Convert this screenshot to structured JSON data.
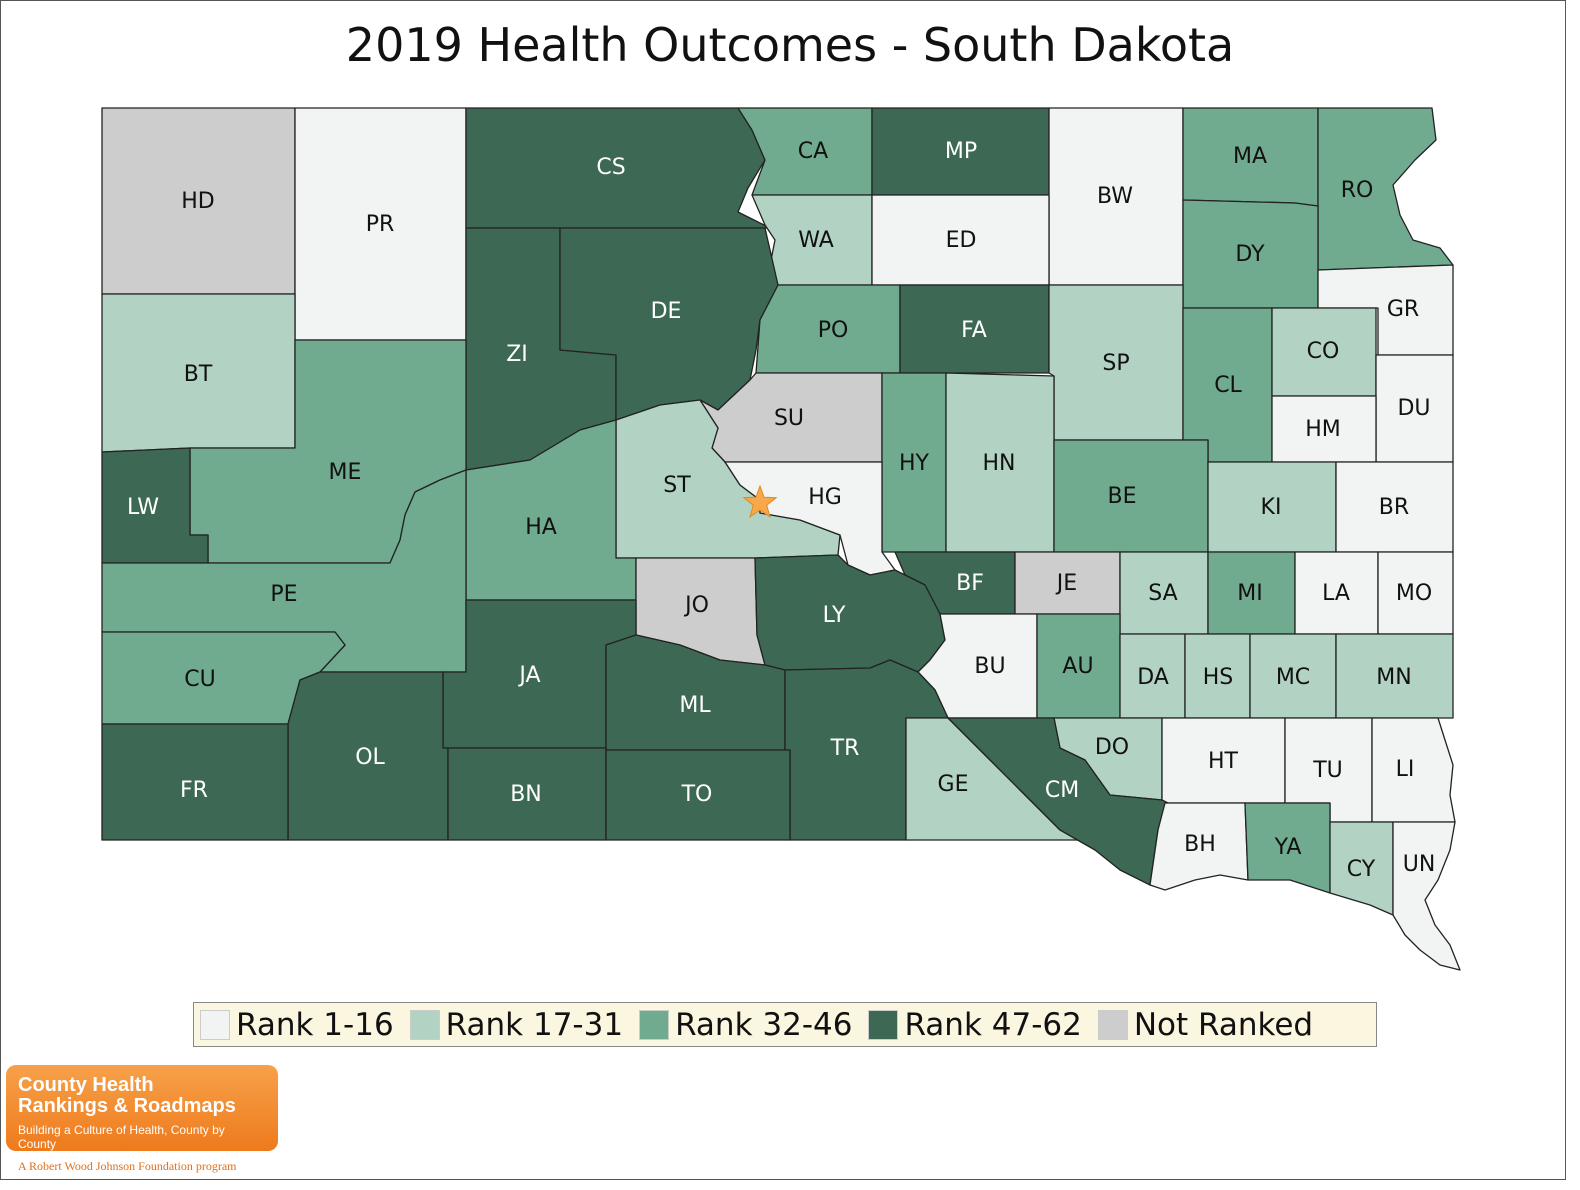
{
  "title": "2019 Health Outcomes - South Dakota",
  "colors": {
    "rank_1_16": "#f1f4f2",
    "rank_17_31": "#b2d3c3",
    "rank_32_46": "#70ab8f",
    "rank_47_62": "#3d6954",
    "not_ranked": "#cdcdcd",
    "star": "#f7a84a"
  },
  "legend": [
    {
      "label": "Rank 1-16",
      "color": "#f1f4f2"
    },
    {
      "label": "Rank 17-31",
      "color": "#b2d3c3"
    },
    {
      "label": "Rank 32-46",
      "color": "#70ab8f"
    },
    {
      "label": "Rank 47-62",
      "color": "#3d6954"
    },
    {
      "label": "Not Ranked",
      "color": "#cdcdcd"
    }
  ],
  "counties": [
    {
      "code": "HD",
      "group": "not_ranked"
    },
    {
      "code": "PR",
      "group": "rank_1_16"
    },
    {
      "code": "CS",
      "group": "rank_47_62"
    },
    {
      "code": "CA",
      "group": "rank_32_46"
    },
    {
      "code": "MP",
      "group": "rank_47_62"
    },
    {
      "code": "BW",
      "group": "rank_1_16"
    },
    {
      "code": "MA",
      "group": "rank_32_46"
    },
    {
      "code": "RO",
      "group": "rank_32_46"
    },
    {
      "code": "WA",
      "group": "rank_17_31"
    },
    {
      "code": "ED",
      "group": "rank_1_16"
    },
    {
      "code": "DY",
      "group": "rank_32_46"
    },
    {
      "code": "GR",
      "group": "rank_1_16"
    },
    {
      "code": "BT",
      "group": "rank_17_31"
    },
    {
      "code": "ZI",
      "group": "rank_47_62"
    },
    {
      "code": "DE",
      "group": "rank_47_62"
    },
    {
      "code": "PO",
      "group": "rank_32_46"
    },
    {
      "code": "FA",
      "group": "rank_47_62"
    },
    {
      "code": "SP",
      "group": "rank_17_31"
    },
    {
      "code": "CL",
      "group": "rank_32_46"
    },
    {
      "code": "CO",
      "group": "rank_17_31"
    },
    {
      "code": "DU",
      "group": "rank_1_16"
    },
    {
      "code": "HM",
      "group": "rank_1_16"
    },
    {
      "code": "ME",
      "group": "rank_32_46"
    },
    {
      "code": "SU",
      "group": "not_ranked"
    },
    {
      "code": "HY",
      "group": "rank_32_46"
    },
    {
      "code": "HN",
      "group": "rank_17_31"
    },
    {
      "code": "LW",
      "group": "rank_47_62"
    },
    {
      "code": "ST",
      "group": "rank_17_31"
    },
    {
      "code": "HG",
      "group": "rank_1_16"
    },
    {
      "code": "HA",
      "group": "rank_32_46"
    },
    {
      "code": "BE",
      "group": "rank_32_46"
    },
    {
      "code": "KI",
      "group": "rank_17_31"
    },
    {
      "code": "BR",
      "group": "rank_1_16"
    },
    {
      "code": "PE",
      "group": "rank_32_46"
    },
    {
      "code": "BF",
      "group": "rank_47_62"
    },
    {
      "code": "JE",
      "group": "not_ranked"
    },
    {
      "code": "SA",
      "group": "rank_17_31"
    },
    {
      "code": "MI",
      "group": "rank_32_46"
    },
    {
      "code": "LA",
      "group": "rank_1_16"
    },
    {
      "code": "MO",
      "group": "rank_1_16"
    },
    {
      "code": "JO",
      "group": "not_ranked"
    },
    {
      "code": "LY",
      "group": "rank_47_62"
    },
    {
      "code": "CU",
      "group": "rank_32_46"
    },
    {
      "code": "JA",
      "group": "rank_47_62"
    },
    {
      "code": "BU",
      "group": "rank_1_16"
    },
    {
      "code": "AU",
      "group": "rank_32_46"
    },
    {
      "code": "DA",
      "group": "rank_17_31"
    },
    {
      "code": "HS",
      "group": "rank_17_31"
    },
    {
      "code": "MC",
      "group": "rank_17_31"
    },
    {
      "code": "MN",
      "group": "rank_17_31"
    },
    {
      "code": "ML",
      "group": "rank_47_62"
    },
    {
      "code": "OL",
      "group": "rank_47_62"
    },
    {
      "code": "TR",
      "group": "rank_47_62"
    },
    {
      "code": "DO",
      "group": "rank_17_31"
    },
    {
      "code": "HT",
      "group": "rank_1_16"
    },
    {
      "code": "TU",
      "group": "rank_1_16"
    },
    {
      "code": "LI",
      "group": "rank_1_16"
    },
    {
      "code": "FR",
      "group": "rank_47_62"
    },
    {
      "code": "GE",
      "group": "rank_17_31"
    },
    {
      "code": "CM",
      "group": "rank_47_62"
    },
    {
      "code": "BN",
      "group": "rank_47_62"
    },
    {
      "code": "TO",
      "group": "rank_47_62"
    },
    {
      "code": "BH",
      "group": "rank_1_16"
    },
    {
      "code": "YA",
      "group": "rank_32_46"
    },
    {
      "code": "CY",
      "group": "rank_17_31"
    },
    {
      "code": "UN",
      "group": "rank_1_16"
    }
  ],
  "capital_marker": "star",
  "logo": {
    "line1": "County Health",
    "line2": "Rankings & Roadmaps",
    "tagline": "Building a Culture of Health, County by County",
    "footer": "A Robert Wood Johnson Foundation program"
  }
}
